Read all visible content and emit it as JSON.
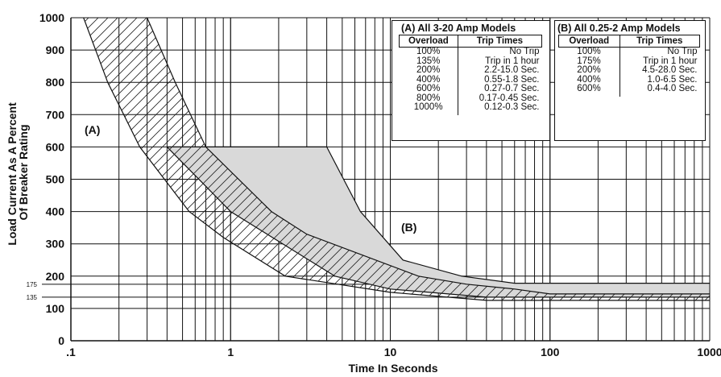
{
  "chart_data": {
    "type": "line",
    "xlabel": "Time In Seconds",
    "ylabel": "Load Current As A Percent Of Breaker Rating",
    "ylabel_lines": [
      "Load Current As A Percent",
      "Of Breaker Rating"
    ],
    "x_scale": "log",
    "xlim": [
      0.1,
      1000
    ],
    "ylim": [
      0,
      1000
    ],
    "x_ticks": [
      ".1",
      "1",
      "10",
      "100",
      "1000"
    ],
    "y_ticks": [
      "0",
      "100",
      "200",
      "300",
      "400",
      "500",
      "600",
      "700",
      "800",
      "900",
      "1000"
    ],
    "y_extra_ticks": [
      "175",
      "135"
    ],
    "grid": true,
    "region_labels": [
      "(A)",
      "(B)"
    ],
    "series": [
      {
        "name": "(A)",
        "fill": "hatched",
        "lower": [
          [
            0.12,
            1000
          ],
          [
            0.17,
            800
          ],
          [
            0.27,
            600
          ],
          [
            0.55,
            400
          ],
          [
            0.9,
            320
          ],
          [
            2.2,
            200
          ],
          [
            10,
            150
          ],
          [
            40,
            125
          ],
          [
            1000,
            125
          ]
        ],
        "upper": [
          [
            0.3,
            1000
          ],
          [
            0.45,
            800
          ],
          [
            0.7,
            600
          ],
          [
            1.8,
            400
          ],
          [
            3,
            330
          ],
          [
            15,
            200
          ],
          [
            30,
            175
          ],
          [
            60,
            160
          ],
          [
            100,
            145
          ],
          [
            1000,
            145
          ]
        ]
      },
      {
        "name": "(B)",
        "fill": "shaded",
        "lower": [
          [
            0.4,
            600
          ],
          [
            1,
            400
          ],
          [
            4.5,
            200
          ],
          [
            10,
            160
          ],
          [
            40,
            135
          ],
          [
            1000,
            135
          ]
        ],
        "upper": [
          [
            4,
            600
          ],
          [
            6.5,
            400
          ],
          [
            12,
            250
          ],
          [
            28,
            200
          ],
          [
            60,
            178
          ],
          [
            1000,
            178
          ]
        ]
      }
    ],
    "tables": [
      {
        "title": "(A) All 3-20 Amp Models",
        "headers": [
          "Overload",
          "Trip Times"
        ],
        "rows": [
          [
            "100%",
            "No Trip"
          ],
          [
            "135%",
            "Trip in 1 hour"
          ],
          [
            "200%",
            "2.2-15.0 Sec."
          ],
          [
            "400%",
            "0.55-1.8 Sec."
          ],
          [
            "600%",
            "0.27-0.7 Sec."
          ],
          [
            "800%",
            "0.17-0.45 Sec."
          ],
          [
            "1000%",
            "0.12-0.3 Sec."
          ]
        ]
      },
      {
        "title": "(B) All 0.25-2 Amp Models",
        "headers": [
          "Overload",
          "Trip Times"
        ],
        "rows": [
          [
            "100%",
            "No Trip"
          ],
          [
            "175%",
            "Trip in 1 hour"
          ],
          [
            "200%",
            "4.5-28.0 Sec."
          ],
          [
            "400%",
            "1.0-6.5 Sec."
          ],
          [
            "600%",
            "0.4-4.0 Sec."
          ]
        ]
      }
    ]
  }
}
